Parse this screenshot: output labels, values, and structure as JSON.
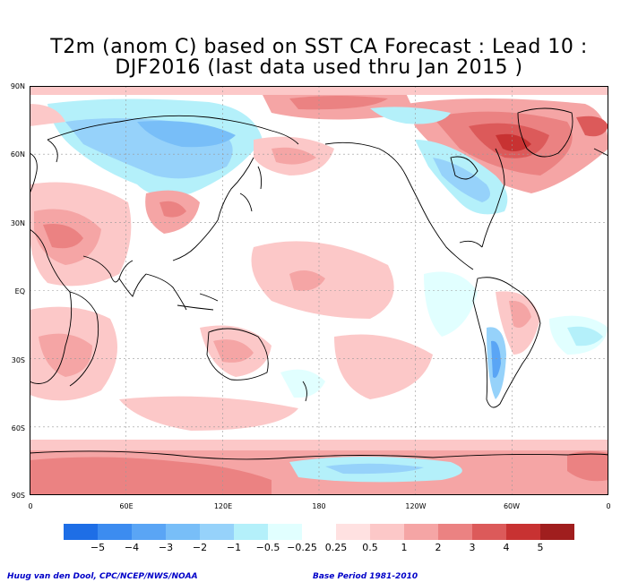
{
  "title": {
    "line1": "T2m (anom C) based on SST CA Forecast : Lead 10 :",
    "line2": "DJF2016 (last data used thru Jan 2015 )"
  },
  "lat_labels": [
    "90N",
    "60N",
    "30N",
    "EQ",
    "30S",
    "60S",
    "90S"
  ],
  "lon_labels": [
    "0",
    "60E",
    "120E",
    "180",
    "120W",
    "60W",
    "0"
  ],
  "colorbar": {
    "colors": [
      "#1e6ee6",
      "#3c8cf0",
      "#5aa5f5",
      "#78bef8",
      "#96d2fa",
      "#b4f0fa",
      "#e1ffff",
      "#ffffff",
      "#ffe1e1",
      "#fcc8c8",
      "#f5a5a5",
      "#eb8282",
      "#dc5a5a",
      "#c83232",
      "#a01e1e"
    ],
    "labels": [
      "−5",
      "−4",
      "−3",
      "−2",
      "−1",
      "−0.5",
      "−0.25",
      "0.25",
      "0.5",
      "1",
      "2",
      "3",
      "4",
      "5"
    ]
  },
  "footer": {
    "left": "Huug van den Dool, CPC/NCEP/NWS/NOAA",
    "right": "Base Period 1981-2010"
  },
  "chart_data": {
    "type": "heatmap",
    "variable": "T2m (anom C)",
    "x_range": [
      0,
      360
    ],
    "y_range": [
      -90,
      90
    ],
    "grid": true,
    "levels": [
      -5,
      -4,
      -3,
      -2,
      -1,
      -0.5,
      -0.25,
      0.25,
      0.5,
      1,
      2,
      3,
      4,
      5
    ],
    "regions": [
      {
        "region": "Greenland / North Atlantic",
        "value": 4
      },
      {
        "region": "Arctic north of Siberia",
        "value": 1.5
      },
      {
        "region": "Northern Eurasia",
        "value": -0.75
      },
      {
        "region": "North America (central/east)",
        "value": -0.75
      },
      {
        "region": "Tibet / Central Asia",
        "value": 1.5
      },
      {
        "region": "North Africa / Arabia",
        "value": 1
      },
      {
        "region": "Central Pacific",
        "value": 0.4
      },
      {
        "region": "Tropical East Pacific",
        "value": -0.4
      },
      {
        "region": "Andes",
        "value": -1.5
      },
      {
        "region": "Australia",
        "value": 0.75
      },
      {
        "region": "Southern Ocean",
        "value": 0.4
      },
      {
        "region": "Antarctica",
        "value": 1.5
      },
      {
        "region": "Ross Sea",
        "value": -0.6
      }
    ]
  }
}
